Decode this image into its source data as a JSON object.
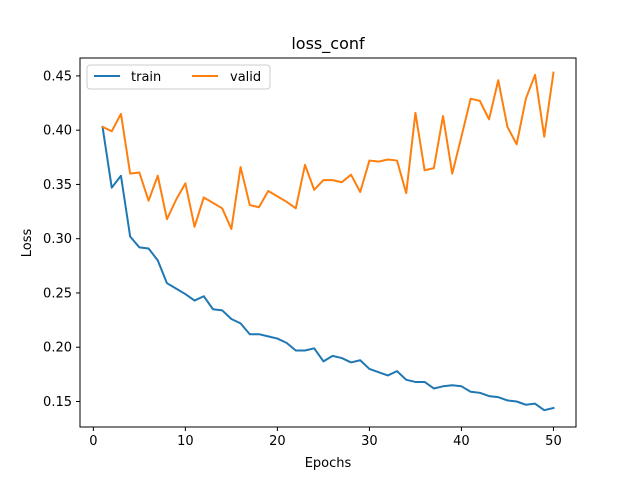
{
  "chart_data": {
    "type": "line",
    "title": "loss_conf",
    "xlabel": "Epochs",
    "ylabel": "Loss",
    "xlim": [
      -1.45,
      52.45
    ],
    "ylim": [
      0.1265,
      0.4665
    ],
    "xticks": [
      0,
      10,
      20,
      30,
      40,
      50
    ],
    "yticks": [
      0.15,
      0.2,
      0.25,
      0.3,
      0.35,
      0.4,
      0.45
    ],
    "ytick_labels": [
      "0.15",
      "0.20",
      "0.25",
      "0.30",
      "0.35",
      "0.40",
      "0.45"
    ],
    "grid": false,
    "legend_position": "top-left",
    "x": [
      1,
      2,
      3,
      4,
      5,
      6,
      7,
      8,
      9,
      10,
      11,
      12,
      13,
      14,
      15,
      16,
      17,
      18,
      19,
      20,
      21,
      22,
      23,
      24,
      25,
      26,
      27,
      28,
      29,
      30,
      31,
      32,
      33,
      34,
      35,
      36,
      37,
      38,
      39,
      40,
      41,
      42,
      43,
      44,
      45,
      46,
      47,
      48,
      49,
      50
    ],
    "series": [
      {
        "name": "train",
        "color": "#1f77b4",
        "values": [
          0.403,
          0.347,
          0.358,
          0.302,
          0.292,
          0.291,
          0.28,
          0.259,
          0.254,
          0.249,
          0.243,
          0.247,
          0.235,
          0.234,
          0.226,
          0.222,
          0.212,
          0.212,
          0.21,
          0.208,
          0.204,
          0.197,
          0.197,
          0.199,
          0.187,
          0.192,
          0.19,
          0.186,
          0.188,
          0.18,
          0.177,
          0.174,
          0.178,
          0.17,
          0.168,
          0.168,
          0.162,
          0.164,
          0.165,
          0.164,
          0.159,
          0.158,
          0.155,
          0.154,
          0.151,
          0.15,
          0.147,
          0.148,
          0.142,
          0.144
        ]
      },
      {
        "name": "valid",
        "color": "#ff7f0e",
        "values": [
          0.403,
          0.399,
          0.415,
          0.36,
          0.361,
          0.335,
          0.358,
          0.318,
          0.336,
          0.351,
          0.311,
          0.338,
          0.333,
          0.328,
          0.309,
          0.366,
          0.331,
          0.329,
          0.344,
          0.339,
          0.334,
          0.328,
          0.368,
          0.345,
          0.354,
          0.354,
          0.352,
          0.359,
          0.343,
          0.372,
          0.371,
          0.373,
          0.372,
          0.342,
          0.416,
          0.363,
          0.365,
          0.413,
          0.36,
          0.394,
          0.429,
          0.427,
          0.41,
          0.446,
          0.403,
          0.387,
          0.429,
          0.451,
          0.394,
          0.453
        ]
      }
    ]
  }
}
